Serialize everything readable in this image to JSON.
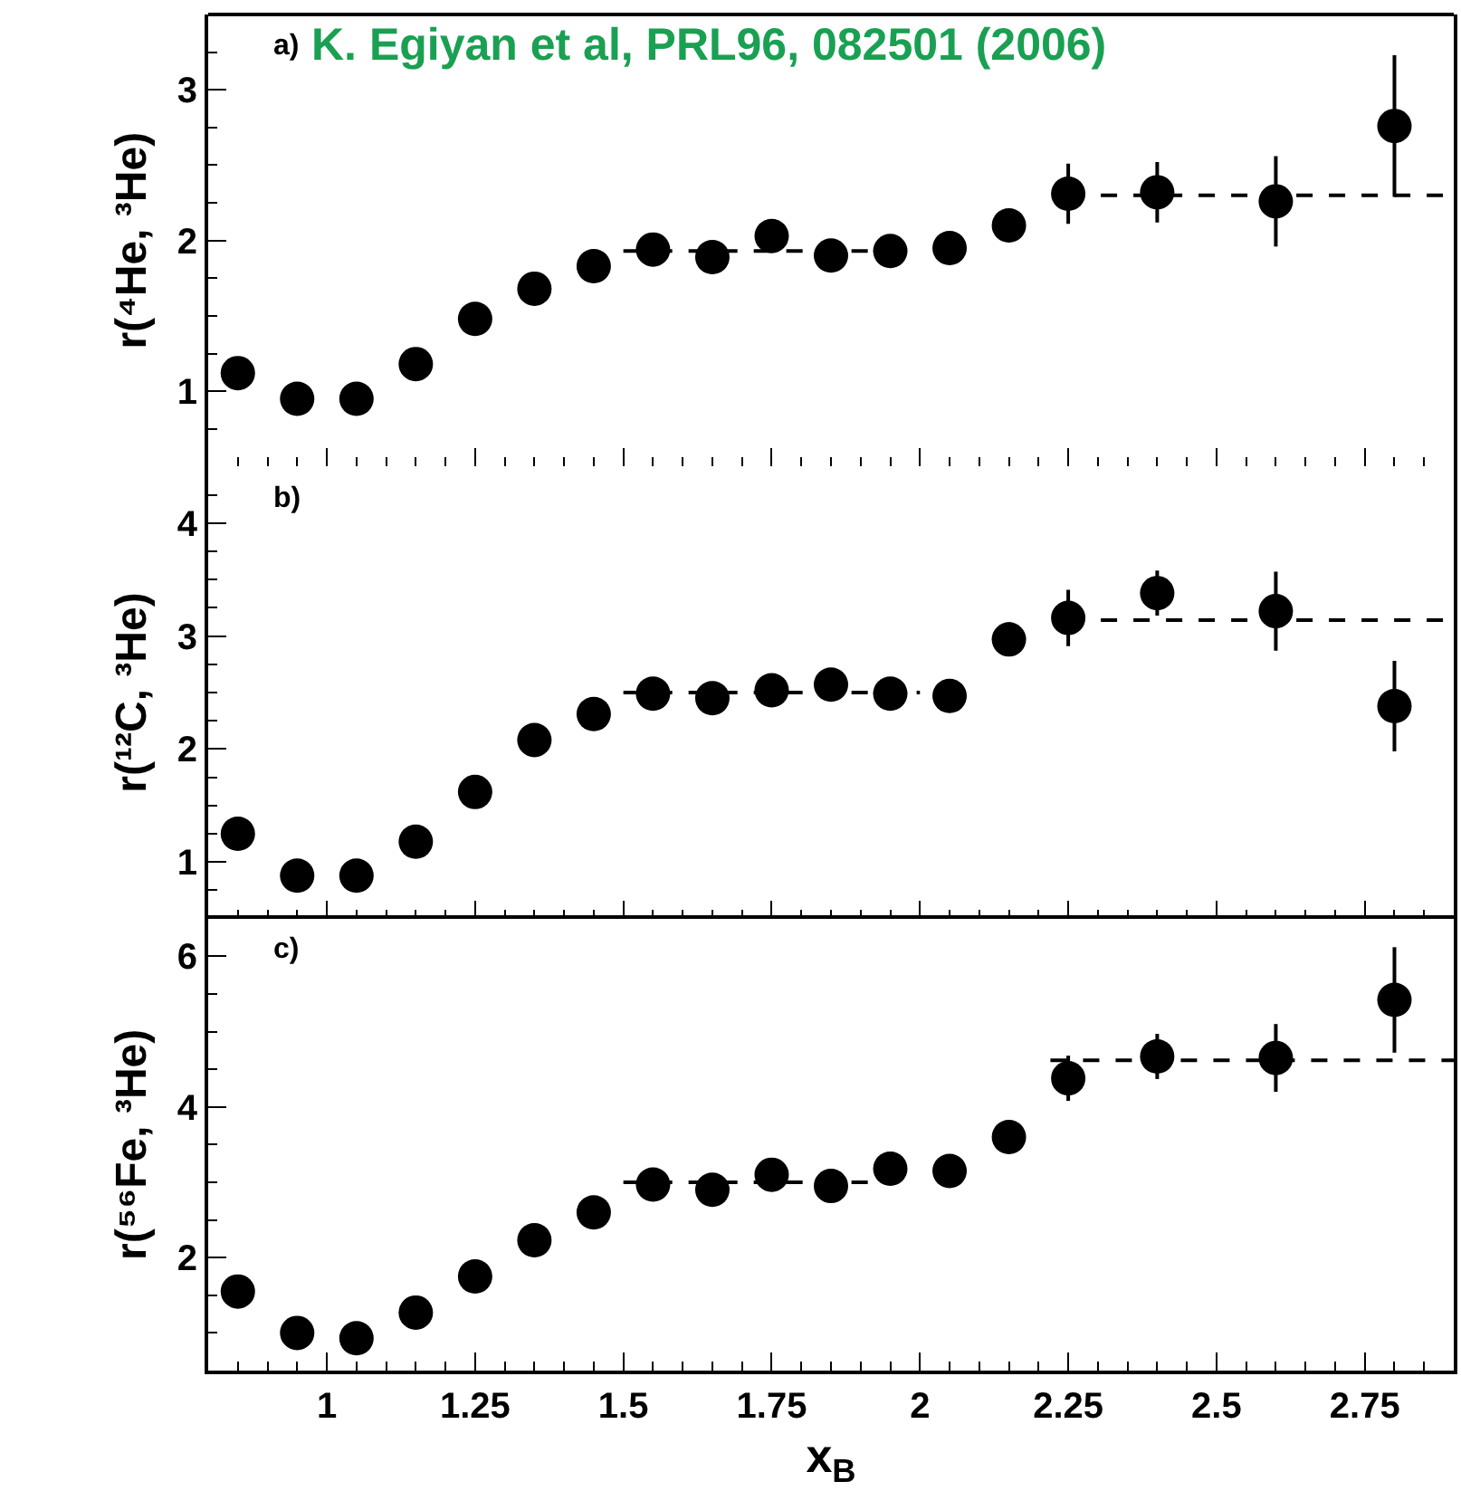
{
  "chart_data": [
    {
      "type": "scatter",
      "ylabel": "r(⁴He, ³He)",
      "annotations": [
        "a)",
        "K. Egiyan et al, PRL96, 082501 (2006)"
      ],
      "xlim": [
        0.8,
        2.9
      ],
      "xticks": [
        1,
        1.25,
        1.5,
        1.75,
        2,
        2.25,
        2.5,
        2.75
      ],
      "ylim": [
        0.5,
        3.5
      ],
      "yticks": [
        1,
        2,
        3
      ],
      "tick_labels": "y",
      "series": [
        {
          "marker": "circle",
          "color": "#000000",
          "x": [
            0.85,
            0.95,
            1.05,
            1.15,
            1.25,
            1.35,
            1.45,
            1.55,
            1.65,
            1.75,
            1.85,
            1.95,
            2.05,
            2.15,
            2.25,
            2.4,
            2.6,
            2.8
          ],
          "values": [
            1.12,
            0.95,
            0.95,
            1.18,
            1.48,
            1.68,
            1.83,
            1.94,
            1.89,
            2.03,
            1.9,
            1.93,
            1.95,
            2.1,
            2.31,
            2.32,
            2.26,
            2.76
          ],
          "errors": [
            null,
            null,
            null,
            null,
            null,
            null,
            null,
            null,
            null,
            null,
            null,
            null,
            null,
            0.1,
            0.2,
            0.2,
            0.3,
            0.47
          ]
        },
        {
          "type": "line",
          "line_style": "dashed",
          "color": "#000000",
          "x": [
            1.5,
            1.95
          ],
          "values": [
            1.93,
            1.93
          ]
        },
        {
          "type": "line",
          "line_style": "dashed",
          "color": "#000000",
          "x": [
            2.25,
            2.9
          ],
          "values": [
            2.3,
            2.3
          ]
        }
      ]
    },
    {
      "type": "scatter",
      "ylabel": "r(¹²C, ³He)",
      "annotations": [
        "b)"
      ],
      "xlim": [
        0.8,
        2.9
      ],
      "xticks": [
        1,
        1.25,
        1.5,
        1.75,
        2,
        2.25,
        2.5,
        2.75
      ],
      "ylim": [
        0.5,
        4.5
      ],
      "yticks": [
        1,
        2,
        3,
        4
      ],
      "tick_labels": "y",
      "series": [
        {
          "marker": "circle",
          "color": "#000000",
          "x": [
            0.85,
            0.95,
            1.05,
            1.15,
            1.25,
            1.35,
            1.45,
            1.55,
            1.65,
            1.75,
            1.85,
            1.95,
            2.05,
            2.15,
            2.25,
            2.4,
            2.6,
            2.8
          ],
          "values": [
            1.25,
            0.88,
            0.88,
            1.18,
            1.62,
            2.08,
            2.31,
            2.49,
            2.45,
            2.52,
            2.57,
            2.49,
            2.47,
            2.97,
            3.16,
            3.38,
            3.22,
            2.38
          ],
          "errors": [
            null,
            null,
            null,
            null,
            null,
            null,
            null,
            null,
            null,
            null,
            null,
            null,
            null,
            0.15,
            0.25,
            0.2,
            0.35,
            0.4
          ]
        },
        {
          "type": "line",
          "line_style": "dashed",
          "color": "#000000",
          "x": [
            1.5,
            2.0
          ],
          "values": [
            2.5,
            2.5
          ]
        },
        {
          "type": "line",
          "line_style": "dashed",
          "color": "#000000",
          "x": [
            2.25,
            2.9
          ],
          "values": [
            3.14,
            3.14
          ]
        }
      ]
    },
    {
      "type": "scatter",
      "ylabel": "r(⁵⁶Fe, ³He)",
      "xlabel": "x$_{B}$",
      "annotations": [
        "c)"
      ],
      "xlim": [
        0.8,
        2.9
      ],
      "xticks": [
        1,
        1.25,
        1.5,
        1.75,
        2,
        2.25,
        2.5,
        2.75
      ],
      "ylim": [
        0.5,
        6.5
      ],
      "yticks": [
        2,
        4,
        6
      ],
      "series": [
        {
          "marker": "circle",
          "color": "#000000",
          "x": [
            0.85,
            0.95,
            1.05,
            1.15,
            1.25,
            1.35,
            1.45,
            1.55,
            1.65,
            1.75,
            1.85,
            1.95,
            2.05,
            2.15,
            2.25,
            2.4,
            2.6,
            2.8
          ],
          "values": [
            1.55,
            1.0,
            0.93,
            1.27,
            1.75,
            2.23,
            2.6,
            2.97,
            2.9,
            3.1,
            2.95,
            3.18,
            3.15,
            3.6,
            4.38,
            4.67,
            4.65,
            5.42
          ],
          "errors": [
            null,
            null,
            null,
            null,
            null,
            null,
            null,
            null,
            null,
            null,
            null,
            null,
            null,
            null,
            0.3,
            0.3,
            0.45,
            0.7
          ]
        },
        {
          "type": "line",
          "line_style": "dashed",
          "color": "#000000",
          "x": [
            1.5,
            1.92
          ],
          "values": [
            3.0,
            3.0
          ]
        },
        {
          "type": "line",
          "line_style": "dashed",
          "color": "#000000",
          "x": [
            2.22,
            2.9
          ],
          "values": [
            4.62,
            4.62
          ]
        }
      ]
    }
  ]
}
